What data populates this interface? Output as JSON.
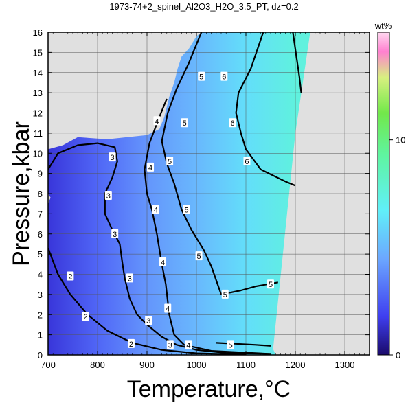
{
  "chart_data": {
    "type": "heatmap",
    "title": "1973-74+2_spinel_Al2O3_H2O_3.5_PT, dz=0.2",
    "xlabel": "Temperature,°C",
    "ylabel": "Pressure,kbar",
    "xlim": [
      700,
      1350
    ],
    "ylim": [
      0,
      16
    ],
    "x_ticks": [
      "700",
      "800",
      "900",
      "1000",
      "1100",
      "1200",
      "1300"
    ],
    "y_ticks": [
      "0",
      "1",
      "2",
      "3",
      "4",
      "5",
      "6",
      "7",
      "8",
      "9",
      "10",
      "11",
      "12",
      "13",
      "14",
      "15",
      "16"
    ],
    "grid": true,
    "background_color": "#e0e0e0",
    "colorbar": {
      "unit_label": "wt%",
      "range": [
        0,
        15
      ],
      "tick_labels": [
        "0",
        "10"
      ],
      "tick_values": [
        0,
        10
      ]
    },
    "field": {
      "description_free": true,
      "boundary": [
        [
          700,
          0
        ],
        [
          1160,
          0
        ],
        [
          1155,
          0.3
        ],
        [
          1200,
          11
        ],
        [
          1230,
          16
        ],
        [
          1220,
          16
        ],
        [
          1010,
          16
        ],
        [
          1000,
          15.8
        ],
        [
          985,
          15.2
        ],
        [
          970,
          14.8
        ],
        [
          962,
          14.2
        ],
        [
          955,
          13.5
        ],
        [
          945,
          12.8
        ],
        [
          935,
          11.8
        ],
        [
          925,
          11.2
        ],
        [
          900,
          10.9
        ],
        [
          860,
          10.8
        ],
        [
          820,
          10.7
        ],
        [
          760,
          10.8
        ],
        [
          730,
          10.4
        ],
        [
          700,
          10.2
        ],
        [
          700,
          8
        ],
        [
          705,
          7.8
        ],
        [
          700,
          7.5
        ]
      ],
      "value_stops": [
        {
          "x": 700,
          "value": 1.5
        },
        {
          "x": 800,
          "value": 2.8
        },
        {
          "x": 900,
          "value": 4.0
        },
        {
          "x": 1000,
          "value": 5.0
        },
        {
          "x": 1100,
          "value": 6.2
        },
        {
          "x": 1200,
          "value": 7.5
        }
      ]
    },
    "contours": [
      {
        "level": "2",
        "points": [
          [
            700,
            5.3
          ],
          [
            720,
            4.0
          ],
          [
            745,
            3.0
          ],
          [
            780,
            2.0
          ],
          [
            820,
            1.2
          ],
          [
            870,
            0.6
          ],
          [
            930,
            0.25
          ],
          [
            1000,
            0.08
          ],
          [
            1100,
            0.02
          ]
        ],
        "labels": [
          [
            745,
            3.9
          ],
          [
            776,
            1.9
          ],
          [
            868,
            0.55
          ]
        ]
      },
      {
        "level": "3",
        "points": [
          [
            700,
            9.2
          ],
          [
            720,
            10.0
          ],
          [
            760,
            10.4
          ],
          [
            800,
            10.5
          ],
          [
            835,
            10.3
          ],
          [
            840,
            9.6
          ],
          [
            830,
            8.8
          ],
          [
            815,
            8.0
          ],
          [
            815,
            7.0
          ],
          [
            830,
            6.2
          ],
          [
            845,
            5.5
          ],
          [
            850,
            4.6
          ],
          [
            855,
            3.8
          ],
          [
            865,
            2.8
          ],
          [
            880,
            2.0
          ],
          [
            900,
            1.5
          ],
          [
            930,
            0.9
          ],
          [
            960,
            0.5
          ],
          [
            1000,
            0.25
          ],
          [
            1060,
            0.1
          ],
          [
            1150,
            0.05
          ]
        ],
        "labels": [
          [
            830,
            9.8
          ],
          [
            822,
            7.9
          ],
          [
            835,
            6.0
          ],
          [
            865,
            3.8
          ],
          [
            903,
            1.7
          ],
          [
            947,
            0.5
          ]
        ]
      },
      {
        "level": "4",
        "points": [
          [
            940,
            12.7
          ],
          [
            925,
            11.8
          ],
          [
            905,
            10.5
          ],
          [
            895,
            9.2
          ],
          [
            900,
            8.0
          ],
          [
            910,
            7.2
          ],
          [
            920,
            6.0
          ],
          [
            930,
            4.5
          ],
          [
            938,
            3.5
          ],
          [
            945,
            2.0
          ],
          [
            955,
            1.0
          ],
          [
            975,
            0.5
          ],
          [
            1030,
            0.2
          ],
          [
            1150,
            0.05
          ]
        ],
        "labels": [
          [
            920,
            11.6
          ],
          [
            907,
            9.3
          ],
          [
            918,
            7.2
          ],
          [
            932,
            4.6
          ],
          [
            942,
            2.3
          ],
          [
            984,
            0.5
          ]
        ]
      },
      {
        "level": "5",
        "points": [
          [
            1010,
            16
          ],
          [
            985,
            14.5
          ],
          [
            960,
            13.2
          ],
          [
            942,
            12.0
          ],
          [
            930,
            10.6
          ],
          [
            940,
            9.5
          ],
          [
            955,
            8.5
          ],
          [
            970,
            7.2
          ],
          [
            990,
            6.2
          ],
          [
            1015,
            5.2
          ],
          [
            1030,
            4.4
          ],
          [
            1050,
            3.0
          ],
          [
            1090,
            3.2
          ],
          [
            1120,
            3.4
          ],
          [
            1165,
            3.6
          ]
        ],
        "labels": [
          [
            1010,
            13.8
          ],
          [
            976,
            11.5
          ],
          [
            946,
            9.6
          ],
          [
            980,
            7.2
          ],
          [
            1005,
            4.9
          ],
          [
            1058,
            3.0
          ],
          [
            1150,
            3.5
          ]
        ]
      },
      {
        "level": "5",
        "points": [
          [
            1040,
            0.6
          ],
          [
            1080,
            0.55
          ],
          [
            1120,
            0.5
          ],
          [
            1150,
            0.45
          ]
        ],
        "labels": [
          [
            1069,
            0.5
          ]
        ]
      },
      {
        "level": "6",
        "points": [
          [
            1135,
            16
          ],
          [
            1110,
            14.2
          ],
          [
            1085,
            13.0
          ],
          [
            1080,
            12.0
          ],
          [
            1090,
            11.0
          ],
          [
            1100,
            10.2
          ],
          [
            1130,
            9.2
          ],
          [
            1180,
            8.6
          ],
          [
            1200,
            8.4
          ]
        ],
        "labels": [
          [
            1056,
            13.8
          ],
          [
            1073,
            11.5
          ],
          [
            1102,
            9.6
          ]
        ]
      },
      {
        "level": "7",
        "points": [
          [
            1195,
            16
          ],
          [
            1208,
            13.8
          ],
          [
            1212,
            13.0
          ]
        ],
        "labels": []
      }
    ]
  }
}
